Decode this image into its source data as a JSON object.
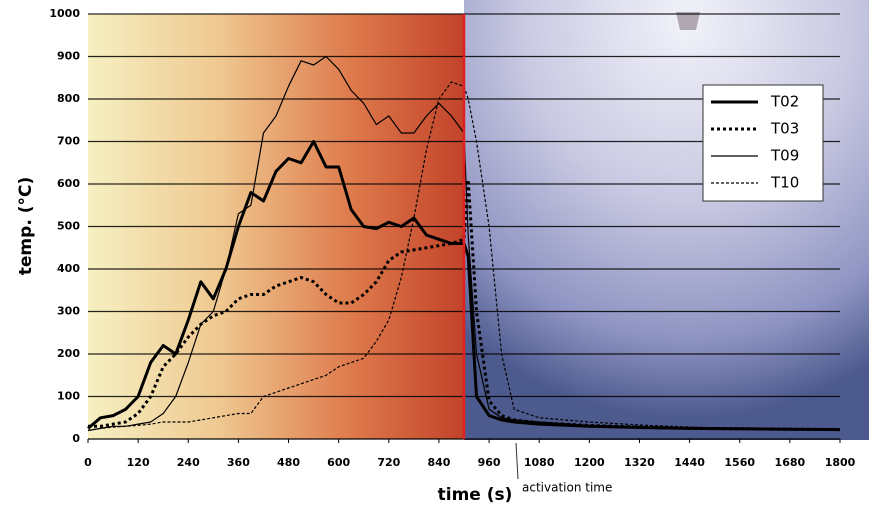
{
  "chart_data": {
    "type": "line",
    "xlabel": "time (s)",
    "ylabel": "temp. (°C)",
    "xlim": [
      0,
      1800
    ],
    "ylim": [
      0,
      1000
    ],
    "xticks": [
      0,
      120,
      240,
      360,
      480,
      600,
      720,
      840,
      960,
      1080,
      1200,
      1320,
      1440,
      1560,
      1680,
      1800
    ],
    "yticks": [
      0,
      100,
      200,
      300,
      400,
      500,
      600,
      700,
      800,
      900,
      1000
    ],
    "grid": true,
    "legend": "upper right",
    "x": [
      0,
      30,
      60,
      90,
      120,
      150,
      180,
      210,
      240,
      270,
      300,
      330,
      360,
      390,
      420,
      450,
      480,
      510,
      540,
      570,
      600,
      630,
      660,
      690,
      720,
      750,
      780,
      810,
      840,
      870,
      900,
      910,
      930,
      960,
      990,
      1020,
      1080,
      1200,
      1320,
      1440,
      1560,
      1680,
      1800
    ],
    "series": [
      {
        "name": "T02",
        "color": "#000000",
        "line_style": "solid",
        "line_width": 3,
        "values": [
          25,
          50,
          55,
          70,
          100,
          180,
          220,
          200,
          280,
          370,
          330,
          400,
          500,
          580,
          560,
          630,
          660,
          650,
          700,
          640,
          640,
          540,
          500,
          495,
          510,
          500,
          520,
          480,
          470,
          460,
          460,
          430,
          100,
          55,
          45,
          40,
          35,
          30,
          27,
          25,
          24,
          23,
          22
        ]
      },
      {
        "name": "T03",
        "color": "#000000",
        "line_style": "dotted",
        "line_width": 3,
        "values": [
          30,
          30,
          35,
          40,
          60,
          100,
          170,
          200,
          240,
          270,
          290,
          300,
          330,
          340,
          340,
          360,
          370,
          380,
          370,
          340,
          320,
          320,
          340,
          370,
          420,
          440,
          445,
          450,
          455,
          460,
          470,
          610,
          300,
          90,
          55,
          45,
          38,
          32,
          28,
          25,
          24,
          23,
          22
        ]
      },
      {
        "name": "T09",
        "color": "#000000",
        "line_style": "solid",
        "line_width": 1.2,
        "values": [
          20,
          25,
          30,
          30,
          35,
          40,
          60,
          100,
          180,
          270,
          300,
          400,
          530,
          550,
          720,
          760,
          830,
          890,
          880,
          900,
          870,
          820,
          790,
          740,
          760,
          720,
          720,
          760,
          790,
          760,
          720,
          480,
          200,
          70,
          50,
          45,
          40,
          32,
          28,
          26,
          24,
          23,
          22
        ]
      },
      {
        "name": "T10",
        "color": "#000000",
        "line_style": "dotted",
        "line_width": 1.2,
        "values": [
          20,
          25,
          28,
          30,
          32,
          35,
          40,
          40,
          40,
          45,
          50,
          55,
          60,
          60,
          100,
          110,
          120,
          130,
          140,
          150,
          170,
          180,
          190,
          230,
          280,
          380,
          520,
          680,
          800,
          840,
          830,
          800,
          700,
          500,
          200,
          70,
          50,
          40,
          33,
          28,
          25,
          23,
          22
        ]
      }
    ],
    "annotations": [
      {
        "text": "activation time",
        "x": 900,
        "color": "#e02020"
      }
    ]
  }
}
